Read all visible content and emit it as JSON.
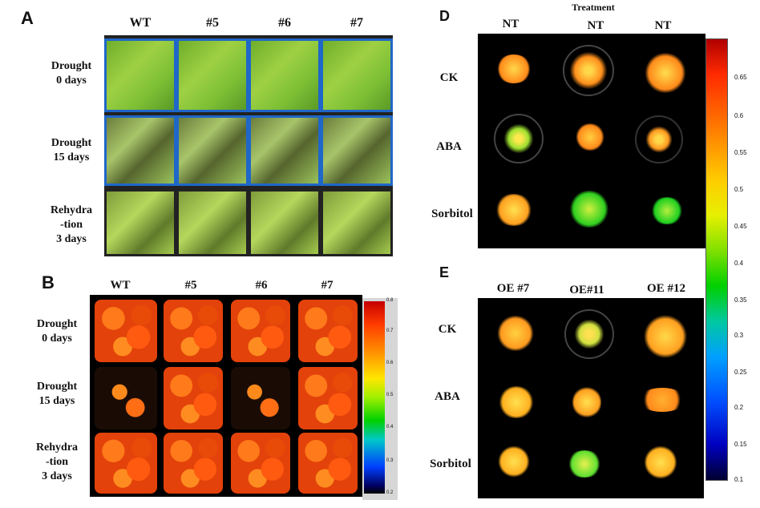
{
  "panel_a": {
    "letter": "A",
    "columns": [
      "WT",
      "#5",
      "#6",
      "#7"
    ],
    "rows": [
      {
        "line1": "Drought",
        "line2": "0 days",
        "line3": ""
      },
      {
        "line1": "Drought",
        "line2": "15 days",
        "line3": ""
      },
      {
        "line1": "Rehydra",
        "line2": "-tion",
        "line3": "3 days"
      }
    ]
  },
  "panel_b": {
    "letter": "B",
    "columns": [
      "WT",
      "#5",
      "#6",
      "#7"
    ],
    "rows": [
      {
        "line1": "Drought",
        "line2": "0 days",
        "line3": ""
      },
      {
        "line1": "Drought",
        "line2": "15 days",
        "line3": ""
      },
      {
        "line1": "Rehydra",
        "line2": "-tion",
        "line3": "3 days"
      }
    ],
    "scale_ticks": [
      "0.8",
      "0.7",
      "0.6",
      "0.5",
      "0.4",
      "0.3",
      "0.2"
    ]
  },
  "panel_d": {
    "letter": "D",
    "header": "Treatment",
    "columns": [
      "NT",
      "NT",
      "NT"
    ],
    "rows": [
      "CK",
      "ABA",
      "Sorbitol"
    ]
  },
  "panel_e": {
    "letter": "E",
    "columns": [
      "OE #7",
      "OE#11",
      "OE #12"
    ],
    "rows": [
      "CK",
      "ABA",
      "Sorbitol"
    ]
  },
  "colorbar": {
    "ticks": [
      "0.65",
      "0.6",
      "0.55",
      "0.5",
      "0.45",
      "0.4",
      "0.35",
      "0.3",
      "0.25",
      "0.2",
      "0.15",
      "0.1"
    ]
  },
  "colors": {
    "tray_border": "#1f67c8",
    "background_dark": "#000000"
  }
}
